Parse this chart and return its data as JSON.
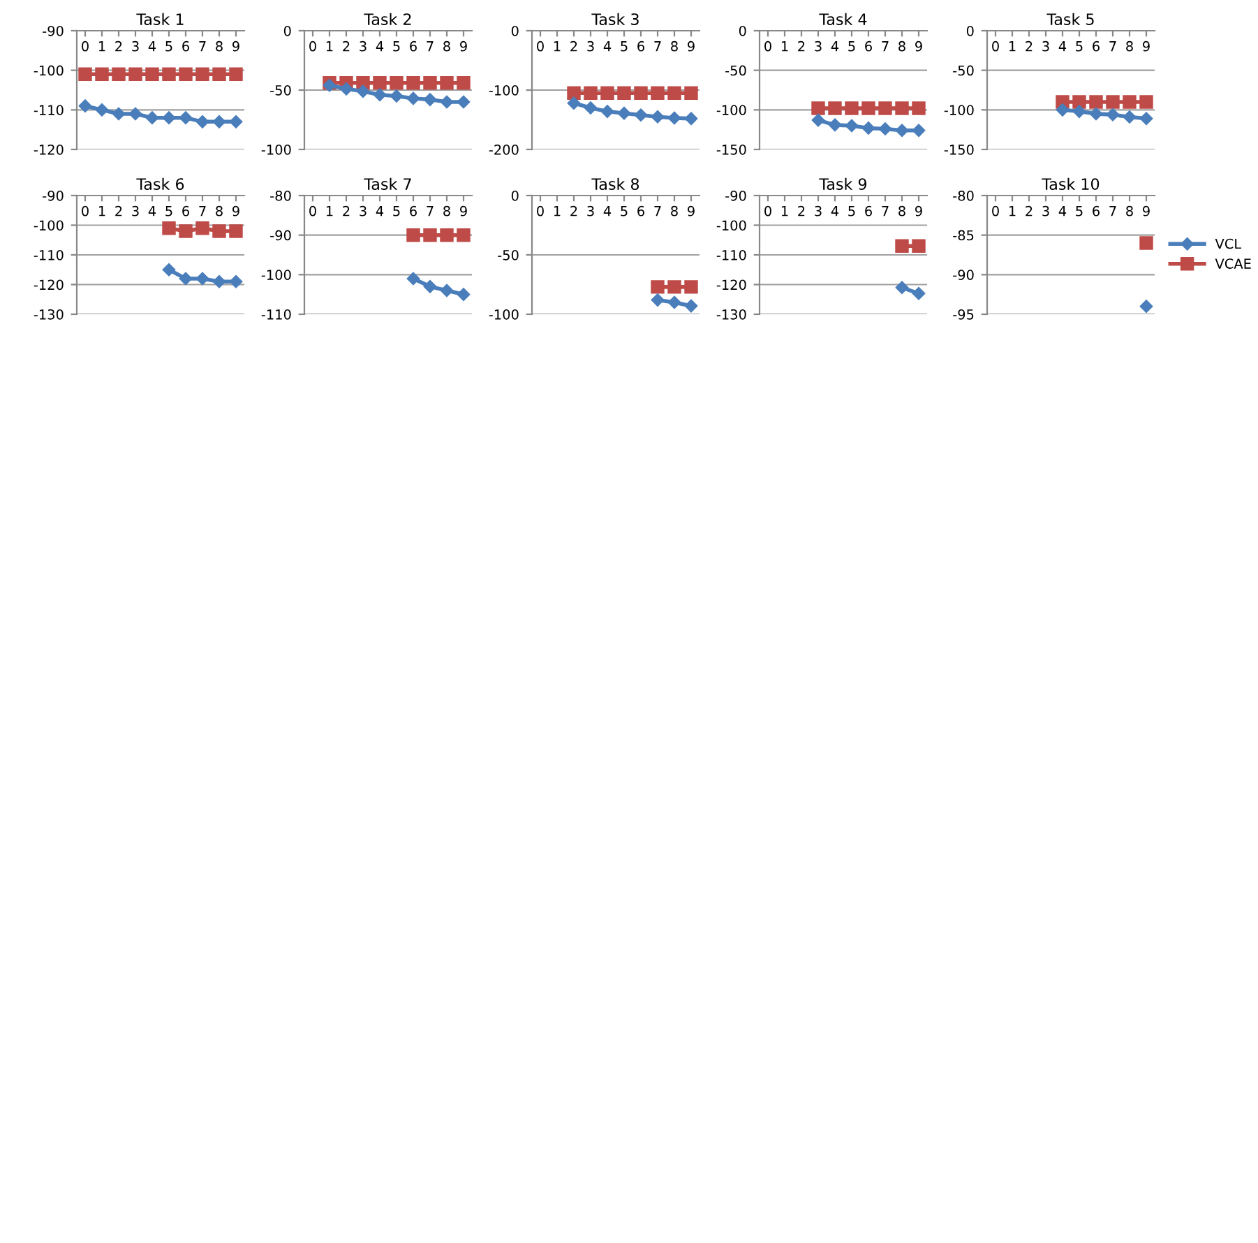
{
  "chart_data": [
    {
      "type": "line",
      "title": "Task 1",
      "categories": [
        "0",
        "1",
        "2",
        "3",
        "4",
        "5",
        "6",
        "7",
        "8",
        "9"
      ],
      "ylim": [
        -120,
        -90
      ],
      "yticks": [
        -120,
        -110,
        -100,
        -90
      ],
      "grid": "y",
      "series": [
        {
          "color": "#4a7ebb",
          "marker": "diamond",
          "values": [
            -109,
            -110,
            -111,
            -111,
            -112,
            -112,
            -112,
            -113,
            -113,
            -113
          ]
        },
        {
          "color": "#be4b48",
          "marker": "square",
          "values": [
            -101,
            -101,
            -101,
            -101,
            -101,
            -101,
            -101,
            -101,
            -101,
            -101
          ]
        }
      ]
    },
    {
      "type": "line",
      "title": "Task 2",
      "categories": [
        "0",
        "1",
        "2",
        "3",
        "4",
        "5",
        "6",
        "7",
        "8",
        "9"
      ],
      "ylim": [
        -100,
        0
      ],
      "yticks": [
        -100,
        -50,
        0
      ],
      "grid": "y",
      "series": [
        {
          "color": "#4a7ebb",
          "marker": "diamond",
          "values": [
            null,
            -46,
            -49,
            -51,
            -54,
            -55,
            -57,
            -58,
            -60,
            -60
          ]
        },
        {
          "color": "#be4b48",
          "marker": "square",
          "values": [
            null,
            -44,
            -44,
            -44,
            -44,
            -44,
            -44,
            -44,
            -44,
            -44
          ]
        }
      ]
    },
    {
      "type": "line",
      "title": "Task 3",
      "categories": [
        "0",
        "1",
        "2",
        "3",
        "4",
        "5",
        "6",
        "7",
        "8",
        "9"
      ],
      "ylim": [
        -200,
        0
      ],
      "yticks": [
        -200,
        -100,
        0
      ],
      "grid": "y",
      "series": [
        {
          "color": "#4a7ebb",
          "marker": "diamond",
          "values": [
            null,
            null,
            -122,
            -130,
            -136,
            -139,
            -142,
            -145,
            -147,
            -148
          ]
        },
        {
          "color": "#be4b48",
          "marker": "square",
          "values": [
            null,
            null,
            -105,
            -105,
            -105,
            -105,
            -105,
            -105,
            -105,
            -105
          ]
        }
      ]
    },
    {
      "type": "line",
      "title": "Task 4",
      "categories": [
        "0",
        "1",
        "2",
        "3",
        "4",
        "5",
        "6",
        "7",
        "8",
        "9"
      ],
      "ylim": [
        -150,
        0
      ],
      "yticks": [
        -150,
        -100,
        -50,
        0
      ],
      "grid": "y",
      "series": [
        {
          "color": "#4a7ebb",
          "marker": "diamond",
          "values": [
            null,
            null,
            null,
            -113,
            -119,
            -120,
            -123,
            -124,
            -126,
            -126
          ]
        },
        {
          "color": "#be4b48",
          "marker": "square",
          "values": [
            null,
            null,
            null,
            -98,
            -98,
            -98,
            -98,
            -98,
            -98,
            -98
          ]
        }
      ]
    },
    {
      "type": "line",
      "title": "Task 5",
      "categories": [
        "0",
        "1",
        "2",
        "3",
        "4",
        "5",
        "6",
        "7",
        "8",
        "9"
      ],
      "ylim": [
        -150,
        0
      ],
      "yticks": [
        -150,
        -100,
        -50,
        0
      ],
      "grid": "y",
      "series": [
        {
          "color": "#4a7ebb",
          "marker": "diamond",
          "values": [
            null,
            null,
            null,
            null,
            -100,
            -102,
            -105,
            -106,
            -109,
            -111
          ]
        },
        {
          "color": "#be4b48",
          "marker": "square",
          "values": [
            null,
            null,
            null,
            null,
            -90,
            -90,
            -90,
            -90,
            -90,
            -90
          ]
        }
      ]
    },
    {
      "type": "line",
      "title": "Task 6",
      "categories": [
        "0",
        "1",
        "2",
        "3",
        "4",
        "5",
        "6",
        "7",
        "8",
        "9"
      ],
      "ylim": [
        -130,
        -90
      ],
      "yticks": [
        -130,
        -120,
        -110,
        -100,
        -90
      ],
      "grid": "y",
      "series": [
        {
          "color": "#4a7ebb",
          "marker": "diamond",
          "values": [
            null,
            null,
            null,
            null,
            null,
            -115,
            -118,
            -118,
            -119,
            -119
          ]
        },
        {
          "color": "#be4b48",
          "marker": "square",
          "values": [
            null,
            null,
            null,
            null,
            null,
            -101,
            -102,
            -101,
            -102,
            -102
          ]
        }
      ]
    },
    {
      "type": "line",
      "title": "Task 7",
      "categories": [
        "0",
        "1",
        "2",
        "3",
        "4",
        "5",
        "6",
        "7",
        "8",
        "9"
      ],
      "ylim": [
        -110,
        -80
      ],
      "yticks": [
        -110,
        -100,
        -90,
        -80
      ],
      "grid": "y",
      "series": [
        {
          "color": "#4a7ebb",
          "marker": "diamond",
          "values": [
            null,
            null,
            null,
            null,
            null,
            null,
            -101,
            -103,
            -104,
            -105
          ]
        },
        {
          "color": "#be4b48",
          "marker": "square",
          "values": [
            null,
            null,
            null,
            null,
            null,
            null,
            -90,
            -90,
            -90,
            -90
          ]
        }
      ]
    },
    {
      "type": "line",
      "title": "Task 8",
      "categories": [
        "0",
        "1",
        "2",
        "3",
        "4",
        "5",
        "6",
        "7",
        "8",
        "9"
      ],
      "ylim": [
        -100,
        0
      ],
      "yticks": [
        -100,
        -50,
        0
      ],
      "grid": "y",
      "series": [
        {
          "color": "#4a7ebb",
          "marker": "diamond",
          "values": [
            null,
            null,
            null,
            null,
            null,
            null,
            null,
            -88,
            -90,
            -93
          ]
        },
        {
          "color": "#be4b48",
          "marker": "square",
          "values": [
            null,
            null,
            null,
            null,
            null,
            null,
            null,
            -77,
            -77,
            -77
          ]
        }
      ]
    },
    {
      "type": "line",
      "title": "Task 9",
      "categories": [
        "0",
        "1",
        "2",
        "3",
        "4",
        "5",
        "6",
        "7",
        "8",
        "9"
      ],
      "ylim": [
        -130,
        -90
      ],
      "yticks": [
        -130,
        -120,
        -110,
        -100,
        -90
      ],
      "grid": "y",
      "series": [
        {
          "color": "#4a7ebb",
          "marker": "diamond",
          "values": [
            null,
            null,
            null,
            null,
            null,
            null,
            null,
            null,
            -121,
            -123
          ]
        },
        {
          "color": "#be4b48",
          "marker": "square",
          "values": [
            null,
            null,
            null,
            null,
            null,
            null,
            null,
            null,
            -107,
            -107
          ]
        }
      ]
    },
    {
      "type": "line",
      "title": "Task 10",
      "categories": [
        "0",
        "1",
        "2",
        "3",
        "4",
        "5",
        "6",
        "7",
        "8",
        "9"
      ],
      "ylim": [
        -95,
        -80
      ],
      "yticks": [
        -95,
        -90,
        -85,
        -80
      ],
      "grid": "y",
      "legend": "right",
      "series": [
        {
          "name": "VCL",
          "color": "#4a7ebb",
          "marker": "diamond",
          "values": [
            null,
            null,
            null,
            null,
            null,
            null,
            null,
            null,
            null,
            -94
          ]
        },
        {
          "name": "VCAE",
          "color": "#be4b48",
          "marker": "square",
          "values": [
            null,
            null,
            null,
            null,
            null,
            null,
            null,
            null,
            null,
            -86
          ]
        }
      ]
    }
  ]
}
